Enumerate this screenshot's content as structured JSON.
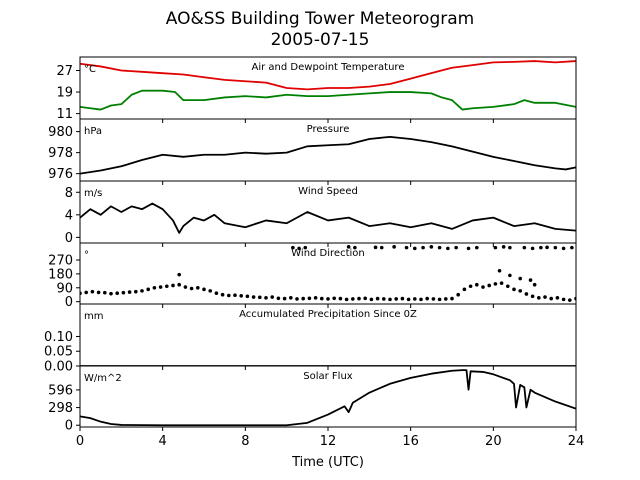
{
  "chart_data": {
    "title": "AO&SS Building Tower Meteorogram",
    "subtitle": "2005-07-15",
    "xlabel": "Time (UTC)",
    "xlim": [
      0,
      24
    ],
    "xticks": [
      0,
      4,
      8,
      12,
      16,
      20,
      24
    ],
    "panels": [
      {
        "key": "temp",
        "type": "line",
        "title": "Air and Dewpoint Temperature",
        "unit": "°C",
        "ylim": [
          9,
          32
        ],
        "yticks": [
          11,
          19,
          27
        ],
        "series": [
          {
            "color": "#e00000",
            "x": [
              0,
              1,
              2,
              3,
              4,
              5,
              6,
              7,
              8,
              9,
              10,
              11,
              12,
              13,
              14,
              15,
              16,
              17,
              18,
              19,
              20,
              21,
              22,
              23,
              24
            ],
            "values": [
              29.5,
              28.5,
              27,
              26.5,
              26,
              25.5,
              24.5,
              23.5,
              23,
              22.5,
              20.5,
              20,
              20.5,
              20.5,
              21,
              22,
              24,
              26,
              28,
              29,
              30,
              30.2,
              30.5,
              30,
              30.5
            ]
          },
          {
            "color": "#008000",
            "x": [
              0,
              0.5,
              1,
              1.5,
              2,
              2.5,
              3,
              4,
              4.6,
              5,
              6,
              7,
              8,
              9,
              10,
              11,
              12,
              13,
              14,
              15,
              16,
              17,
              17.5,
              18,
              18.5,
              19,
              20,
              21,
              21.5,
              22,
              23,
              24
            ],
            "values": [
              13.5,
              13,
              12.5,
              14,
              14.5,
              18,
              19.5,
              19.5,
              19,
              16,
              16,
              17,
              17.5,
              17,
              18,
              17.5,
              17.5,
              18,
              18.5,
              19,
              19,
              18.5,
              17,
              16,
              12.5,
              13,
              13.5,
              14.5,
              16,
              15,
              15,
              13.5
            ]
          }
        ]
      },
      {
        "key": "pres",
        "type": "line",
        "title": "Pressure",
        "unit": "hPa",
        "ylim": [
          975.3,
          981.2
        ],
        "yticks": [
          976,
          978,
          980
        ],
        "series": [
          {
            "color": "#000000",
            "x": [
              0,
              1,
              2,
              3,
              4,
              5,
              6,
              7,
              8,
              9,
              10,
              11,
              12,
              13,
              14,
              15,
              16,
              17,
              18,
              19,
              20,
              21,
              22,
              23,
              23.5,
              24
            ],
            "values": [
              976,
              976.3,
              976.7,
              977.3,
              977.8,
              977.6,
              977.8,
              977.8,
              978.0,
              977.9,
              978.0,
              978.6,
              978.7,
              978.8,
              979.3,
              979.5,
              979.3,
              979.0,
              978.6,
              978.1,
              977.6,
              977.2,
              976.8,
              976.5,
              976.4,
              976.6
            ]
          }
        ]
      },
      {
        "key": "wspd",
        "type": "line",
        "title": "Wind Speed",
        "unit": "m/s",
        "ylim": [
          -1,
          10
        ],
        "yticks": [
          0,
          4,
          8
        ],
        "series": [
          {
            "color": "#000000",
            "x": [
              0,
              0.5,
              1,
              1.5,
              2,
              2.5,
              3,
              3.5,
              4,
              4.5,
              4.8,
              5,
              5.5,
              6,
              6.5,
              7,
              8,
              9,
              10,
              10.5,
              11,
              12,
              13,
              14,
              15,
              16,
              17,
              18,
              19,
              20,
              21,
              22,
              23,
              24
            ],
            "values": [
              3.5,
              5,
              4,
              5.5,
              4.5,
              5.5,
              5,
              6,
              5,
              3,
              0.8,
              2,
              3.5,
              3,
              4,
              2.5,
              1.8,
              3,
              2.5,
              3.5,
              4.5,
              3,
              3.5,
              2,
              2.5,
              1.8,
              2.5,
              1.5,
              3,
              3.5,
              2,
              2.5,
              1.5,
              1.2
            ]
          }
        ]
      },
      {
        "key": "wdir",
        "type": "scatter",
        "title": "Wind Direction",
        "unit": "°",
        "ylim": [
          -15,
          380
        ],
        "yticks": [
          0,
          90,
          180,
          270
        ],
        "series": [
          {
            "color": "#000000",
            "x": [
              0,
              0.3,
              0.6,
              0.9,
              1.2,
              1.5,
              1.8,
              2.1,
              2.4,
              2.7,
              3.0,
              3.3,
              3.6,
              3.9,
              4.2,
              4.5,
              4.8,
              5.1,
              5.4,
              5.7,
              6.0,
              6.3,
              6.6,
              6.9,
              7.2,
              7.5,
              7.8,
              8.1,
              8.4,
              8.7,
              9.0,
              9.3,
              9.6,
              9.9,
              10.2,
              10.5,
              10.8,
              11.1,
              11.4,
              11.7,
              12.0,
              12.3,
              12.6,
              12.9,
              13.2,
              13.5,
              13.8,
              14.1,
              14.4,
              14.7,
              15.0,
              15.3,
              15.6,
              15.9,
              16.2,
              16.5,
              16.8,
              17.1,
              17.4,
              17.7,
              18.0,
              18.3,
              18.6,
              18.9,
              19.2,
              19.5,
              19.8,
              20.1,
              20.4,
              20.7,
              21.0,
              21.3,
              21.6,
              21.9,
              22.2,
              22.5,
              22.8,
              23.1,
              23.4,
              23.7,
              24.0,
              4.8,
              10.3,
              10.6,
              10.9,
              13.0,
              13.3,
              14.3,
              14.6,
              15.2,
              15.8,
              16.2,
              16.6,
              17.0,
              17.4,
              17.8,
              18.2,
              18.8,
              19.2,
              20.1,
              20.5,
              20.8,
              21.5,
              21.9,
              22.3,
              22.6,
              23.0,
              23.4,
              23.8,
              20.3,
              20.8,
              21.3,
              21.8,
              22.0
            ],
            "values": [
              55,
              60,
              65,
              60,
              58,
              52,
              55,
              58,
              62,
              65,
              70,
              80,
              90,
              95,
              100,
              105,
              110,
              95,
              85,
              90,
              80,
              70,
              55,
              45,
              40,
              42,
              38,
              35,
              30,
              28,
              25,
              30,
              22,
              20,
              25,
              18,
              20,
              22,
              25,
              20,
              18,
              22,
              20,
              15,
              18,
              20,
              22,
              15,
              20,
              18,
              15,
              18,
              20,
              15,
              18,
              15,
              20,
              18,
              15,
              18,
              20,
              45,
              80,
              100,
              110,
              95,
              105,
              115,
              120,
              100,
              80,
              70,
              50,
              35,
              25,
              30,
              20,
              25,
              15,
              10,
              20,
              175,
              350,
              345,
              350,
              355,
              350,
              352,
              350,
              355,
              350,
              345,
              350,
              355,
              350,
              345,
              350,
              345,
              350,
              350,
              355,
              350,
              350,
              345,
              350,
              352,
              350,
              345,
              350,
              200,
              170,
              150,
              140,
              110
            ]
          }
        ]
      },
      {
        "key": "prec",
        "type": "line",
        "title": "Accumulated Precipitation Since 0Z",
        "unit": "mm",
        "ylim": [
          0,
          0.21
        ],
        "yticks": [
          "0.00",
          "0.05",
          "0.10"
        ],
        "series": [
          {
            "color": "#000000",
            "x": [
              0,
              24
            ],
            "values": [
              0,
              0
            ]
          }
        ]
      },
      {
        "key": "solar",
        "type": "line",
        "title": "Solar Flux",
        "unit": "W/m^2",
        "ylim": [
          -30,
          1000
        ],
        "yticks": [
          0,
          298,
          596
        ],
        "series": [
          {
            "color": "#000000",
            "x": [
              0,
              0.5,
              1,
              1.5,
              2,
              4,
              6,
              8,
              10,
              11,
              12,
              12.8,
              13,
              13.2,
              14,
              15,
              16,
              17,
              18,
              18.5,
              18.7,
              18.8,
              18.9,
              19.5,
              20,
              20.8,
              21,
              21.1,
              21.3,
              21.5,
              21.6,
              21.8,
              22,
              23,
              24
            ],
            "values": [
              150,
              120,
              60,
              20,
              5,
              0,
              0,
              0,
              0,
              40,
              180,
              320,
              220,
              380,
              550,
              700,
              800,
              870,
              920,
              930,
              930,
              600,
              910,
              900,
              860,
              760,
              700,
              300,
              680,
              640,
              300,
              600,
              550,
              400,
              280
            ]
          }
        ]
      }
    ]
  }
}
